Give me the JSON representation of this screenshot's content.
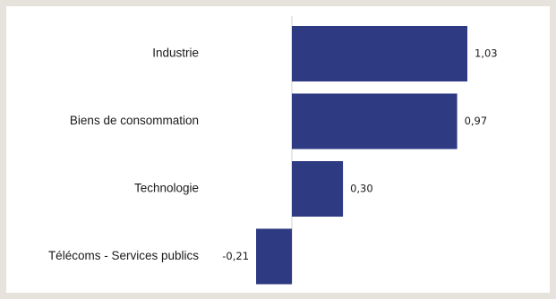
{
  "chart_data": {
    "type": "bar",
    "orientation": "horizontal",
    "categories": [
      "Industrie",
      "Biens de consommation",
      "Technologie",
      "Télécoms - Services publics"
    ],
    "values": [
      1.03,
      0.97,
      0.3,
      -0.21
    ],
    "value_labels": [
      "1,03",
      "0,97",
      "0,30",
      "-0,21"
    ],
    "title": "",
    "xlabel": "",
    "ylabel": "",
    "xlim": [
      -0.21,
      1.03
    ],
    "grid": false,
    "legend": "none",
    "bar_color": "#2e3a82",
    "axis_color": "#d0d0d0"
  }
}
